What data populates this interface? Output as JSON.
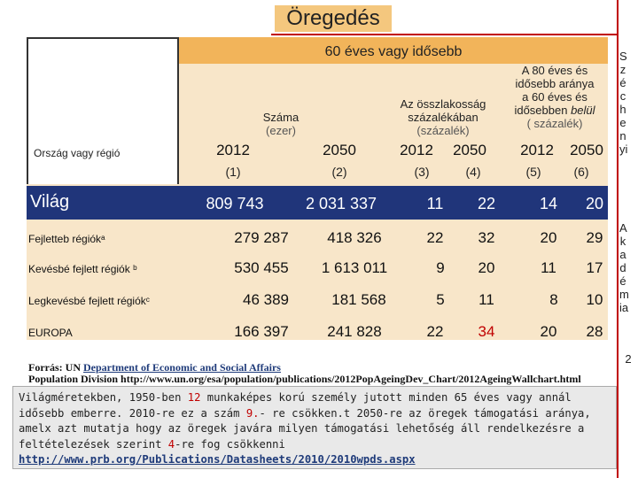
{
  "title": "Öregedés",
  "table": {
    "header_band": "60 éves vagy idősebb",
    "country_label": "Ország vagy régió",
    "group_number": "Száma",
    "group_number_unit": "(ezer)",
    "group_share": "Az összlakosság százalékában",
    "group_share_unit": "(százalék)",
    "group_80_line1": "A 80 éves és",
    "group_80_line2": "idősebb aránya",
    "group_80_line3": "a 60 éves és",
    "group_80_line4_a": "idősebben ",
    "group_80_line4_b": "belül",
    "group_80_unit": "( százalék)",
    "years": [
      "2012",
      "2050",
      "2012",
      "2050",
      "2012",
      "2050"
    ],
    "col_nums": [
      "(1)",
      "(2)",
      "(3)",
      "(4)",
      "(5)",
      "(6)"
    ],
    "world": {
      "label": "Világ",
      "values": [
        "809 743",
        "2 031 337",
        "11",
        "22",
        "14",
        "20"
      ]
    },
    "rows": [
      {
        "label": "Fejletteb régiókᵃ",
        "values": [
          "279 287",
          "418 326",
          "22",
          "32",
          "20",
          "29"
        ]
      },
      {
        "label": "Kevésbé fejlett régiók ᵇ",
        "values": [
          "530 455",
          "1 613 011",
          "9",
          "20",
          "11",
          "17"
        ]
      },
      {
        "label": "Legkevésbé fejlett régiókᶜ",
        "values": [
          "46 389",
          "181 568",
          "5",
          "11",
          "8",
          "10"
        ]
      },
      {
        "label": "EUROPA",
        "values": [
          "166 397",
          "241 828",
          "22",
          "34",
          "20",
          "28"
        ]
      }
    ]
  },
  "side_text_top": "S z é c h e n yi",
  "side_text_mid": "A k a d é m ia",
  "side_text_bot": "2",
  "source": {
    "prefix": "Forrás: UN ",
    "link": "Department of Economic and Social Affairs",
    "line2": "Population Division http://www.un.org/esa/population/publications/2012PopAgeingDev_Chart/2012AgeingWallchart.html"
  },
  "note": {
    "p1": "Világméretekben, 1950-ben ",
    "n1": "12",
    "p2": " munkaképes korú személy jutott minden 65 éves vagy annál idősebb emberre.  2010-re ez a szám  ",
    "n2": "9.",
    "p3": "- re csökken.t 2050-re az öregek támogatási aránya, amelx azt mutatja hogy az öregek javára  milyen támogatási lehetőség áll rendelkezésre a feltételezések szerint ",
    "n3": "4",
    "p4": "-re fog csökkenni",
    "url": "http://www.prb.org/Publications/Datasheets/2010/2010wpds.aspx"
  },
  "colors": {
    "accent_band": "#f2b45a",
    "world_band": "#20357a",
    "highlight": "#c00000"
  }
}
